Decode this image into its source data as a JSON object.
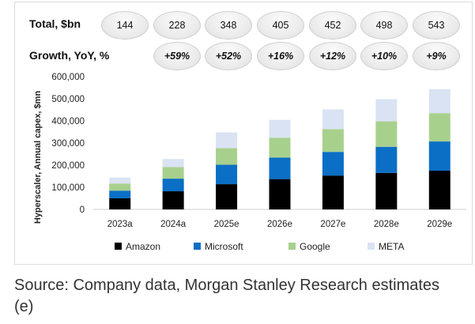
{
  "header": {
    "total_label": "Total, $bn",
    "growth_label": "Growth, YoY, %",
    "totals": [
      "144",
      "228",
      "348",
      "405",
      "452",
      "498",
      "543"
    ],
    "growth": [
      "+59%",
      "+52%",
      "+16%",
      "+12%",
      "+10%",
      "+9%"
    ]
  },
  "chart_data": {
    "type": "bar",
    "stacked": true,
    "categories": [
      "2023a",
      "2024a",
      "2025e",
      "2026e",
      "2027e",
      "2028e",
      "2029e"
    ],
    "series": [
      {
        "name": "Amazon",
        "color": "#000000",
        "values": [
          50,
          82,
          114,
          137,
          153,
          165,
          175
        ]
      },
      {
        "name": "Microsoft",
        "color": "#0b6fc5",
        "values": [
          35,
          57,
          88,
          97,
          107,
          118,
          132
        ]
      },
      {
        "name": "Google",
        "color": "#a8d08d",
        "values": [
          32,
          52,
          75,
          90,
          103,
          115,
          128
        ]
      },
      {
        "name": "META",
        "color": "#dae3f3",
        "values": [
          27,
          37,
          71,
          81,
          89,
          100,
          108
        ]
      }
    ],
    "ylabel": "Hyperscaler, Annual capex, $mn",
    "xlabel": "",
    "ylim": [
      0,
      600000
    ],
    "yticks": [
      "0",
      "100,000",
      "200,000",
      "300,000",
      "400,000",
      "500,000",
      "600,000"
    ],
    "legend_position": "bottom",
    "grid": false
  },
  "source_text": "Source: Company data, Morgan Stanley Research estimates (e)"
}
